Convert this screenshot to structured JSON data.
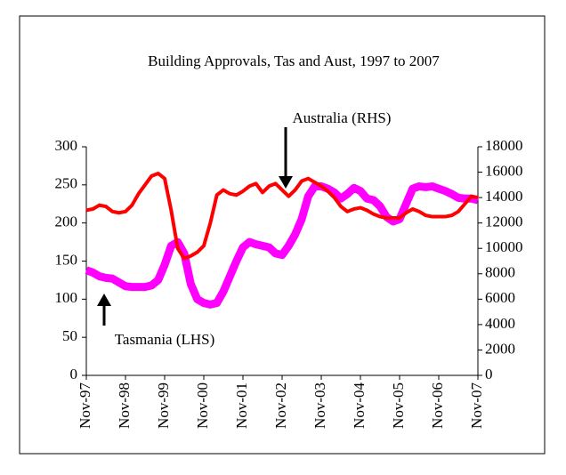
{
  "chart_data": {
    "type": "line",
    "title": "Building Approvals, Tas and Aust, 1997 to 2007",
    "categories": [
      "Nov-97",
      null,
      null,
      null,
      null,
      null,
      "Nov-98",
      null,
      null,
      null,
      null,
      null,
      "Nov-99",
      null,
      null,
      null,
      null,
      null,
      "Nov-00",
      null,
      null,
      null,
      null,
      null,
      "Nov-01",
      null,
      null,
      null,
      null,
      null,
      "Nov-02",
      null,
      null,
      null,
      null,
      null,
      "Nov-03",
      null,
      null,
      null,
      null,
      null,
      "Nov-04",
      null,
      null,
      null,
      null,
      null,
      "Nov-05",
      null,
      null,
      null,
      null,
      null,
      "Nov-06",
      null,
      null,
      null,
      null,
      null,
      "Nov-07"
    ],
    "series": [
      {
        "name": "Tasmania (LHS)",
        "color": "#ff00ff",
        "axis": "y",
        "values": [
          138,
          135,
          130,
          128,
          127,
          122,
          117,
          116,
          116,
          116,
          118,
          125,
          145,
          170,
          175,
          160,
          120,
          100,
          95,
          93,
          95,
          110,
          130,
          150,
          168,
          175,
          172,
          170,
          168,
          160,
          158,
          170,
          185,
          205,
          235,
          248,
          248,
          245,
          240,
          232,
          238,
          246,
          242,
          232,
          230,
          222,
          208,
          202,
          205,
          225,
          245,
          248,
          247,
          248,
          245,
          242,
          238,
          233,
          232,
          232,
          230
        ]
      },
      {
        "name": "Australia (RHS)",
        "color": "#ff0000",
        "axis": "y2",
        "values": [
          13000,
          13100,
          13400,
          13300,
          12900,
          12800,
          12900,
          13400,
          14300,
          15000,
          15700,
          15900,
          15500,
          13000,
          10000,
          9200,
          9400,
          9700,
          10200,
          12000,
          14200,
          14600,
          14300,
          14200,
          14500,
          14900,
          15100,
          14400,
          14900,
          15100,
          14600,
          14100,
          14600,
          15300,
          15500,
          15200,
          14900,
          14500,
          14000,
          13300,
          12900,
          13100,
          13200,
          13000,
          12700,
          12500,
          12400,
          12400,
          12400,
          12800,
          13100,
          12900,
          12600,
          12500,
          12500,
          12500,
          12600,
          12900,
          13500,
          14100,
          14000
        ]
      }
    ],
    "ylim": [
      0,
      300
    ],
    "yticks": [
      0,
      50,
      100,
      150,
      200,
      250,
      300
    ],
    "y2lim": [
      0,
      18000
    ],
    "y2ticks": [
      0,
      2000,
      4000,
      6000,
      8000,
      10000,
      12000,
      14000,
      16000,
      18000
    ]
  }
}
